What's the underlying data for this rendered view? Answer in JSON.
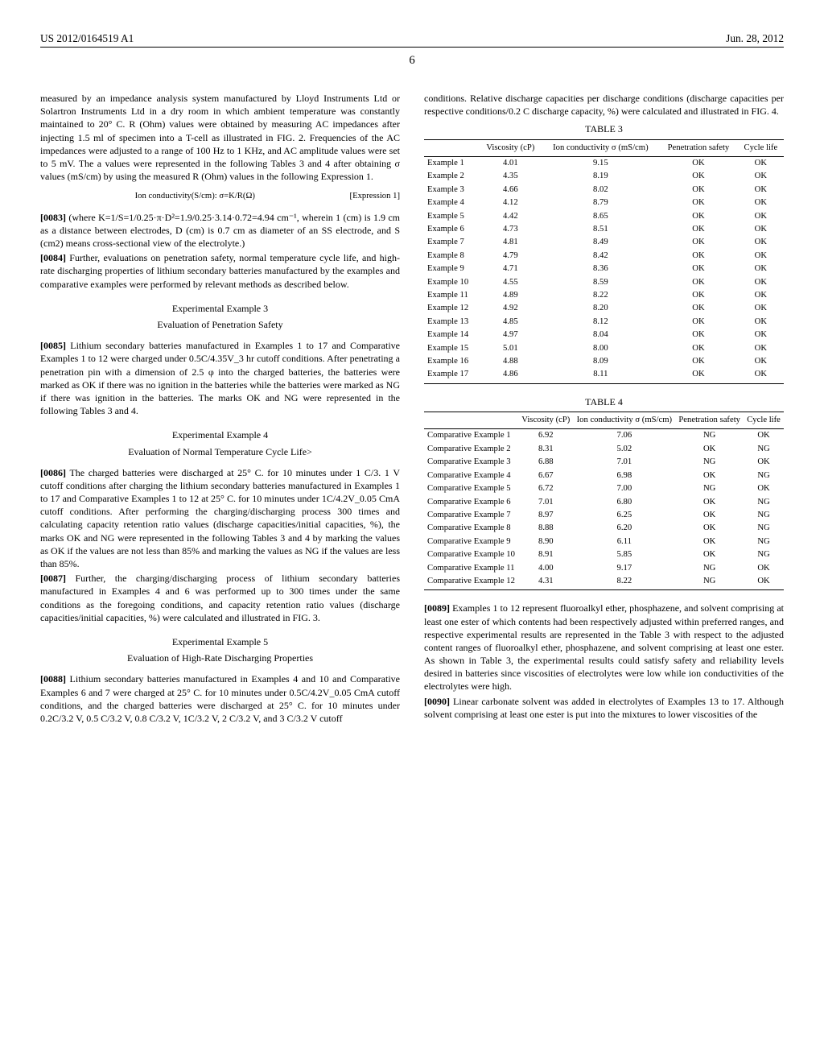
{
  "header": {
    "patent_id": "US 2012/0164519 A1",
    "date": "Jun. 28, 2012"
  },
  "page_number": "6",
  "left_column": {
    "para_continued": "measured by an impedance analysis system manufactured by Lloyd Instruments Ltd or Solartron Instruments Ltd in a dry room in which ambient temperature was constantly maintained to 20° C. R (Ohm) values were obtained by measuring AC impedances after injecting 1.5 ml of specimen into a T-cell as illustrated in FIG. 2. Frequencies of the AC impedances were adjusted to a range of 100 Hz to 1 KHz, and AC amplitude values were set to 5 mV. The a values were represented in the following Tables 3 and 4 after obtaining σ values (mS/cm) by using the measured R (Ohm) values in the following Expression 1.",
    "expression": "Ion conductivity(S/cm): σ=K/R(Ω)",
    "expression_label": "[Expression 1]",
    "para_0083_num": "[0083]",
    "para_0083": " (where K=1/S=1/0.25·π·D²=1.9/0.25·3.14·0.72=4.94 cm⁻¹, wherein 1 (cm) is 1.9 cm as a distance between electrodes, D (cm) is 0.7 cm as diameter of an SS electrode, and S (cm2) means cross-sectional view of the electrolyte.)",
    "para_0084_num": "[0084]",
    "para_0084": " Further, evaluations on penetration safety, normal temperature cycle life, and high-rate discharging properties of lithium secondary batteries manufactured by the examples and comparative examples were performed by relevant methods as described below.",
    "exp3_title": "Experimental Example 3",
    "exp3_subtitle": "Evaluation of Penetration Safety",
    "para_0085_num": "[0085]",
    "para_0085": " Lithium secondary batteries manufactured in Examples 1 to 17 and Comparative Examples 1 to 12 were charged under 0.5C/4.35V_3 hr cutoff conditions. After penetrating a penetration pin with a dimension of 2.5 φ into the charged batteries, the batteries were marked as OK if there was no ignition in the batteries while the batteries were marked as NG if there was ignition in the batteries. The marks OK and NG were represented in the following Tables 3 and 4.",
    "exp4_title": "Experimental Example 4",
    "exp4_subtitle": "Evaluation of Normal Temperature Cycle Life>",
    "para_0086_num": "[0086]",
    "para_0086": " The charged batteries were discharged at 25° C. for 10 minutes under 1 C/3. 1 V cutoff conditions after charging the lithium secondary batteries manufactured in Examples 1 to 17 and Comparative Examples 1 to 12 at 25° C. for 10 minutes under 1C/4.2V_0.05 CmA cutoff conditions. After performing the charging/discharging process 300 times and calculating capacity retention ratio values (discharge capacities/initial capacities, %), the marks OK and NG were represented in the following Tables 3 and 4 by marking the values as OK if the values are not less than 85% and marking the values as NG if the values are less than 85%.",
    "para_0087_num": "[0087]",
    "para_0087": " Further, the charging/discharging process of lithium secondary batteries manufactured in Examples 4 and 6 was performed up to 300 times under the same conditions as the foregoing conditions, and capacity retention ratio values (discharge capacities/initial capacities, %) were calculated and illustrated in FIG. 3.",
    "exp5_title": "Experimental Example 5",
    "exp5_subtitle": "Evaluation of High-Rate Discharging Properties",
    "para_0088_num": "[0088]",
    "para_0088": " Lithium secondary batteries manufactured in Examples 4 and 10 and Comparative Examples 6 and 7 were charged at 25° C. for 10 minutes under 0.5C/4.2V_0.05 CmA cutoff conditions, and the charged batteries were discharged at 25° C. for 10 minutes under 0.2C/3.2 V, 0.5 C/3.2 V, 0.8 C/3.2 V, 1C/3.2 V, 2 C/3.2 V, and 3 C/3.2 V cutoff"
  },
  "right_column": {
    "top_para": "conditions. Relative discharge capacities per discharge conditions (discharge capacities per respective conditions/0.2 C discharge capacity, %) were calculated and illustrated in FIG. 4.",
    "table3": {
      "caption": "TABLE 3",
      "headers": [
        "",
        "Viscosity (cP)",
        "Ion conductivity σ (mS/cm)",
        "Penetration safety",
        "Cycle life"
      ],
      "rows": [
        [
          "Example 1",
          "4.01",
          "9.15",
          "OK",
          "OK"
        ],
        [
          "Example 2",
          "4.35",
          "8.19",
          "OK",
          "OK"
        ],
        [
          "Example 3",
          "4.66",
          "8.02",
          "OK",
          "OK"
        ],
        [
          "Example 4",
          "4.12",
          "8.79",
          "OK",
          "OK"
        ],
        [
          "Example 5",
          "4.42",
          "8.65",
          "OK",
          "OK"
        ],
        [
          "Example 6",
          "4.73",
          "8.51",
          "OK",
          "OK"
        ],
        [
          "Example 7",
          "4.81",
          "8.49",
          "OK",
          "OK"
        ],
        [
          "Example 8",
          "4.79",
          "8.42",
          "OK",
          "OK"
        ],
        [
          "Example 9",
          "4.71",
          "8.36",
          "OK",
          "OK"
        ],
        [
          "Example 10",
          "4.55",
          "8.59",
          "OK",
          "OK"
        ],
        [
          "Example 11",
          "4.89",
          "8.22",
          "OK",
          "OK"
        ],
        [
          "Example 12",
          "4.92",
          "8.20",
          "OK",
          "OK"
        ],
        [
          "Example 13",
          "4.85",
          "8.12",
          "OK",
          "OK"
        ],
        [
          "Example 14",
          "4.97",
          "8.04",
          "OK",
          "OK"
        ],
        [
          "Example 15",
          "5.01",
          "8.00",
          "OK",
          "OK"
        ],
        [
          "Example 16",
          "4.88",
          "8.09",
          "OK",
          "OK"
        ],
        [
          "Example 17",
          "4.86",
          "8.11",
          "OK",
          "OK"
        ]
      ]
    },
    "table4": {
      "caption": "TABLE 4",
      "headers": [
        "",
        "Viscosity (cP)",
        "Ion conductivity σ (mS/cm)",
        "Penetration safety",
        "Cycle life"
      ],
      "rows": [
        [
          "Comparative Example 1",
          "6.92",
          "7.06",
          "NG",
          "OK"
        ],
        [
          "Comparative Example 2",
          "8.31",
          "5.02",
          "OK",
          "NG"
        ],
        [
          "Comparative Example 3",
          "6.88",
          "7.01",
          "NG",
          "OK"
        ],
        [
          "Comparative Example 4",
          "6.67",
          "6.98",
          "OK",
          "NG"
        ],
        [
          "Comparative Example 5",
          "6.72",
          "7.00",
          "NG",
          "OK"
        ],
        [
          "Comparative Example 6",
          "7.01",
          "6.80",
          "OK",
          "NG"
        ],
        [
          "Comparative Example 7",
          "8.97",
          "6.25",
          "OK",
          "NG"
        ],
        [
          "Comparative Example 8",
          "8.88",
          "6.20",
          "OK",
          "NG"
        ],
        [
          "Comparative Example 9",
          "8.90",
          "6.11",
          "OK",
          "NG"
        ],
        [
          "Comparative Example 10",
          "8.91",
          "5.85",
          "OK",
          "NG"
        ],
        [
          "Comparative Example 11",
          "4.00",
          "9.17",
          "NG",
          "OK"
        ],
        [
          "Comparative Example 12",
          "4.31",
          "8.22",
          "NG",
          "OK"
        ]
      ]
    },
    "para_0089_num": "[0089]",
    "para_0089": " Examples 1 to 12 represent fluoroalkyl ether, phosphazene, and solvent comprising at least one ester of which contents had been respectively adjusted within preferred ranges, and respective experimental results are represented in the Table 3 with respect to the adjusted content ranges of fluoroalkyl ether, phosphazene, and solvent comprising at least one ester. As shown in Table 3, the experimental results could satisfy safety and reliability levels desired in batteries since viscosities of electrolytes were low while ion conductivities of the electrolytes were high.",
    "para_0090_num": "[0090]",
    "para_0090": " Linear carbonate solvent was added in electrolytes of Examples 13 to 17. Although solvent comprising at least one ester is put into the mixtures to lower viscosities of the"
  }
}
